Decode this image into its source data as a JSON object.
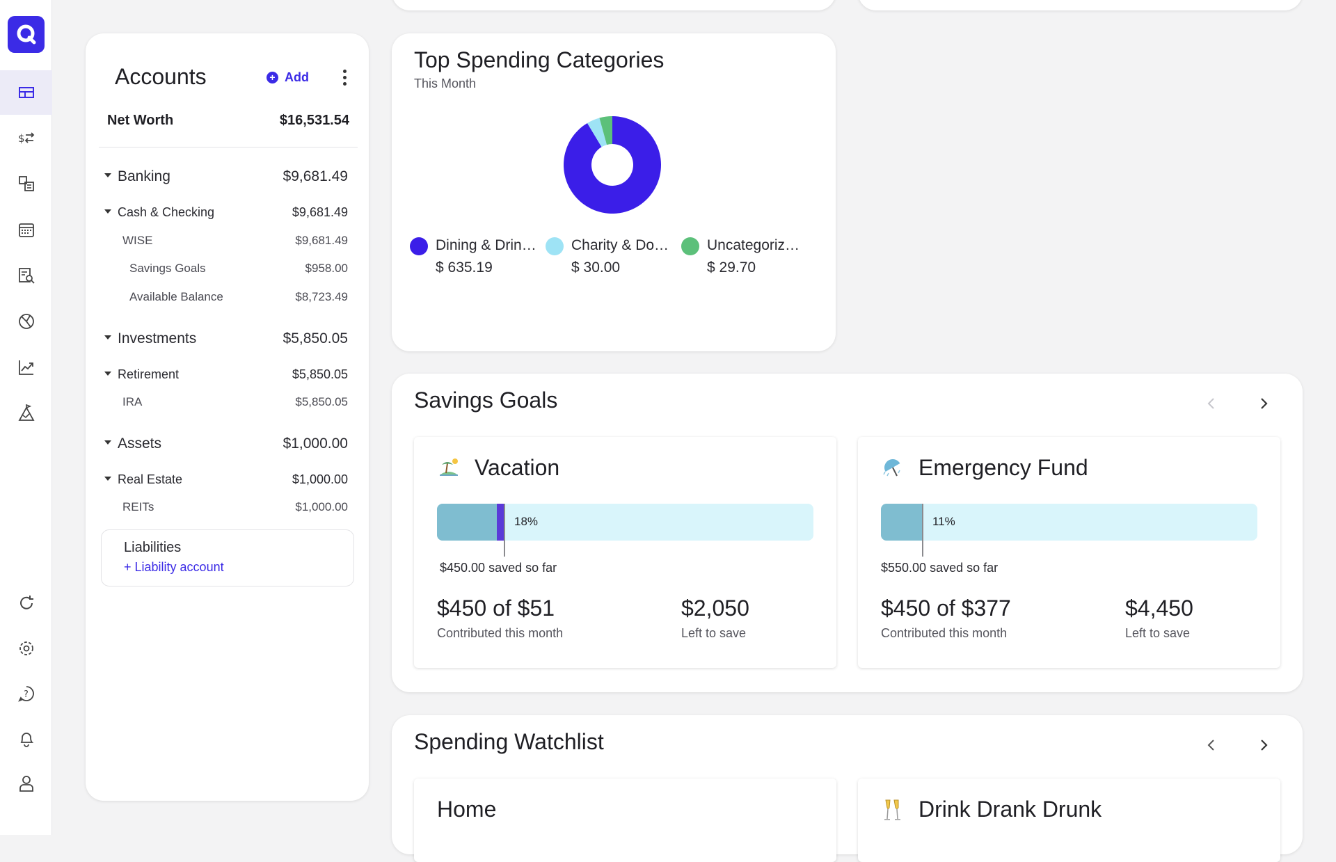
{
  "rail": {
    "items": [
      {
        "name": "dashboard-icon",
        "active": true
      },
      {
        "name": "transactions-icon",
        "active": false
      },
      {
        "name": "categories-icon",
        "active": false
      },
      {
        "name": "calendar-icon",
        "active": false
      },
      {
        "name": "reports-icon",
        "active": false
      },
      {
        "name": "budget-icon",
        "active": false
      },
      {
        "name": "investments-icon",
        "active": false
      },
      {
        "name": "planning-icon",
        "active": false
      }
    ],
    "bottom": [
      "refresh-icon",
      "settings-icon",
      "help-icon",
      "notifications-icon",
      "profile-icon"
    ],
    "accent": "#3b2be6"
  },
  "accounts": {
    "title": "Accounts",
    "add_label": "Add",
    "net_worth_label": "Net Worth",
    "net_worth_value": "$16,531.54",
    "rows": [
      {
        "label": "Banking",
        "value": "$9,681.49"
      },
      {
        "label": "Cash & Checking",
        "value": "$9,681.49"
      },
      {
        "label": "WISE",
        "value": "$9,681.49"
      },
      {
        "label": "Savings Goals",
        "value": "$958.00"
      },
      {
        "label": "Available Balance",
        "value": "$8,723.49"
      },
      {
        "label": "Investments",
        "value": "$5,850.05"
      },
      {
        "label": "Retirement",
        "value": "$5,850.05"
      },
      {
        "label": "IRA",
        "value": "$5,850.05"
      },
      {
        "label": "Assets",
        "value": "$1,000.00"
      },
      {
        "label": "Real Estate",
        "value": "$1,000.00"
      },
      {
        "label": "REITs",
        "value": "$1,000.00"
      }
    ],
    "liabilities_title": "Liabilities",
    "liabilities_link": "+ Liability account"
  },
  "top_spending": {
    "title": "Top Spending Categories",
    "subtitle": "This Month",
    "categories": [
      {
        "label": "Dining & Drin…",
        "value": "$ 635.19",
        "amount": 635.19,
        "color": "#3b1ee8"
      },
      {
        "label": "Charity & Do…",
        "value": "$ 30.00",
        "amount": 30.0,
        "color": "#9ee3f5"
      },
      {
        "label": "Uncategoriz…",
        "value": "$ 29.70",
        "amount": 29.7,
        "color": "#5cc07a"
      }
    ]
  },
  "savings_goals": {
    "title": "Savings Goals",
    "goals": [
      {
        "icon": "beach-icon",
        "title": "Vacation",
        "percent_label": "18%",
        "progress": 0.18,
        "saved": "$450.00 saved so far",
        "contributed": "$450 of $51",
        "contributed_label": "Contributed this month",
        "left": "$2,050",
        "left_label": "Left to save"
      },
      {
        "icon": "umbrella-icon",
        "title": "Emergency Fund",
        "percent_label": "11%",
        "progress": 0.11,
        "saved": "$550.00 saved so far",
        "contributed": "$450 of $377",
        "contributed_label": "Contributed this month",
        "left": "$4,450",
        "left_label": "Left to save"
      }
    ]
  },
  "watchlist": {
    "title": "Spending Watchlist",
    "items": [
      {
        "title": "Home",
        "icon": ""
      },
      {
        "title": "Drink Drank Drunk",
        "icon": "champagne-icon"
      }
    ]
  }
}
